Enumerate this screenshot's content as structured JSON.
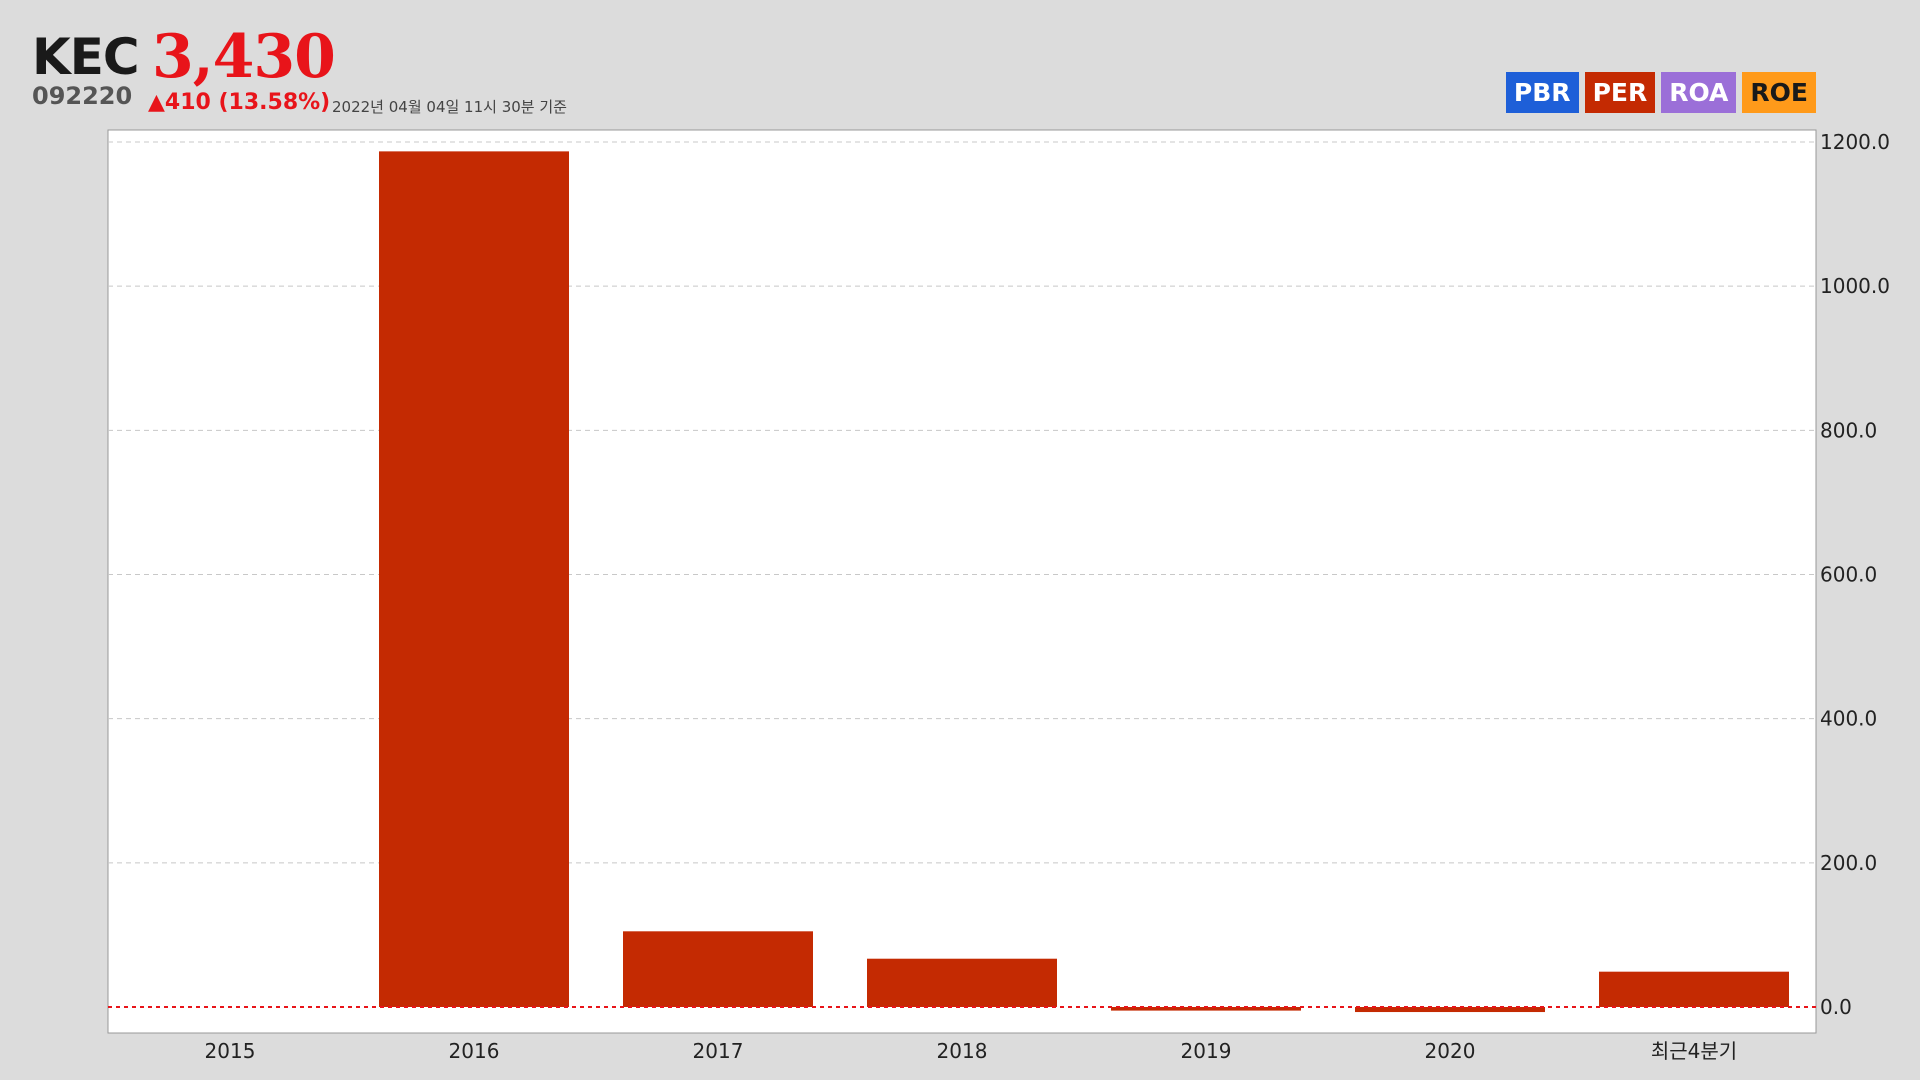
{
  "header": {
    "name": "KEC",
    "price": "3,430",
    "code": "092220",
    "change": "▲410 (13.58%)",
    "timestamp": "2022년 04월 04일 11시 30분 기준"
  },
  "tabs": [
    {
      "label": "PBR",
      "color": "#1e5fd8"
    },
    {
      "label": "PER",
      "color": "#c42a02"
    },
    {
      "label": "ROA",
      "color": "#9b6fd8"
    },
    {
      "label": "ROE",
      "color": "#ff9a1a"
    }
  ],
  "chart_data": {
    "type": "bar",
    "categories": [
      "2015",
      "2016",
      "2017",
      "2018",
      "2019",
      "2020",
      "최근4분기"
    ],
    "values": [
      null,
      1187,
      105,
      67,
      -5,
      -7,
      49
    ],
    "ylim": [
      0,
      1200
    ],
    "yticks": [
      "0.0",
      "200.0",
      "400.0",
      "600.0",
      "800.0",
      "1000.0",
      "1200.0"
    ],
    "bar_color": "#c42a02",
    "zero_line_color": "#e8141a",
    "grid": true,
    "y_axis_side": "right"
  }
}
